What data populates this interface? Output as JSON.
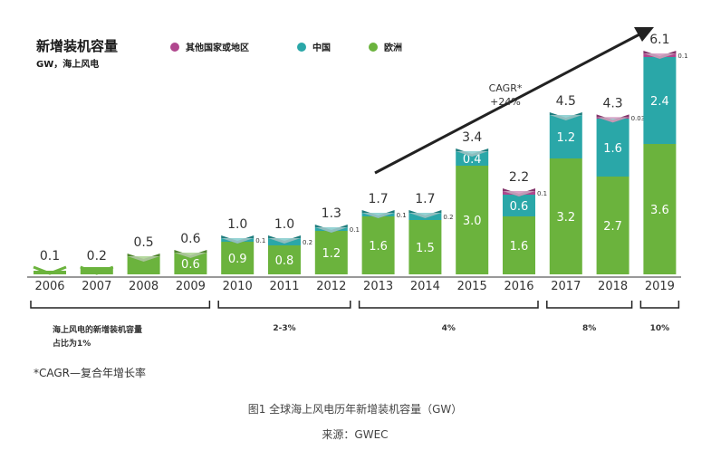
{
  "chart_data": {
    "type": "bar",
    "stacked": true,
    "title": "新增装机容量",
    "subtitle": "GW，海上风电",
    "legend": [
      {
        "name": "其他国家或地区",
        "color": "#b0478e"
      },
      {
        "name": "中国",
        "color": "#2aa7a8"
      },
      {
        "name": "欧洲",
        "color": "#6bb33d"
      }
    ],
    "categories": [
      "2006",
      "2007",
      "2008",
      "2009",
      "2010",
      "2011",
      "2012",
      "2013",
      "2014",
      "2015",
      "2016",
      "2017",
      "2018",
      "2019"
    ],
    "series": [
      {
        "name": "欧洲",
        "values": [
          0.1,
          0.2,
          0.5,
          0.6,
          0.9,
          0.8,
          1.2,
          1.6,
          1.5,
          3.0,
          1.6,
          3.2,
          2.7,
          3.6
        ],
        "labels": [
          "",
          "",
          "",
          "0.6",
          "0.9",
          "0.8",
          "1.2",
          "1.6",
          "1.5",
          "3.0",
          "1.6",
          "3.2",
          "2.7",
          "3.6"
        ]
      },
      {
        "name": "中国",
        "values": [
          0,
          0,
          0,
          0,
          0.1,
          0.2,
          0.1,
          0.1,
          0.2,
          0.4,
          0.6,
          1.2,
          1.6,
          2.4
        ],
        "labels": [
          "",
          "",
          "",
          "",
          "0.1",
          "0.2",
          "0.1",
          "0.1",
          "0.2",
          "0.4",
          "0.6",
          "1.2",
          "1.6",
          "2.4"
        ]
      },
      {
        "name": "其他国家或地区",
        "values": [
          0,
          0,
          0,
          0,
          0,
          0,
          0,
          0,
          0,
          0,
          0.1,
          0,
          0.03,
          0.1
        ],
        "labels": [
          "",
          "",
          "",
          "",
          "",
          "",
          "",
          "",
          "",
          "",
          "0.1",
          "",
          "0.03",
          "0.1"
        ]
      }
    ],
    "totals": [
      "0.1",
      "0.2",
      "0.5",
      "0.6",
      "1.0",
      "1.0",
      "1.3",
      "1.7",
      "1.7",
      "3.4",
      "2.2",
      "4.5",
      "4.3",
      "6.1"
    ],
    "share_groups": [
      {
        "start": 0,
        "end": 3,
        "label": "海上风电的新增装机容量",
        "label2": "占比为1%"
      },
      {
        "start": 4,
        "end": 6,
        "label": "2-3%",
        "label2": ""
      },
      {
        "start": 7,
        "end": 10,
        "label": "4%",
        "label2": ""
      },
      {
        "start": 11,
        "end": 12,
        "label": "8%",
        "label2": ""
      },
      {
        "start": 13,
        "end": 13,
        "label": "10%",
        "label2": ""
      }
    ],
    "annotation": {
      "line1": "CAGR*",
      "line2": "+24%"
    },
    "ylim": [
      0,
      6.1
    ],
    "grid": false,
    "legend_position": "top"
  },
  "footnote": "*CAGR—复合年增长率",
  "caption": "图1  全球海上风电历年新增装机容量（GW）",
  "source": "来源：GWEC"
}
